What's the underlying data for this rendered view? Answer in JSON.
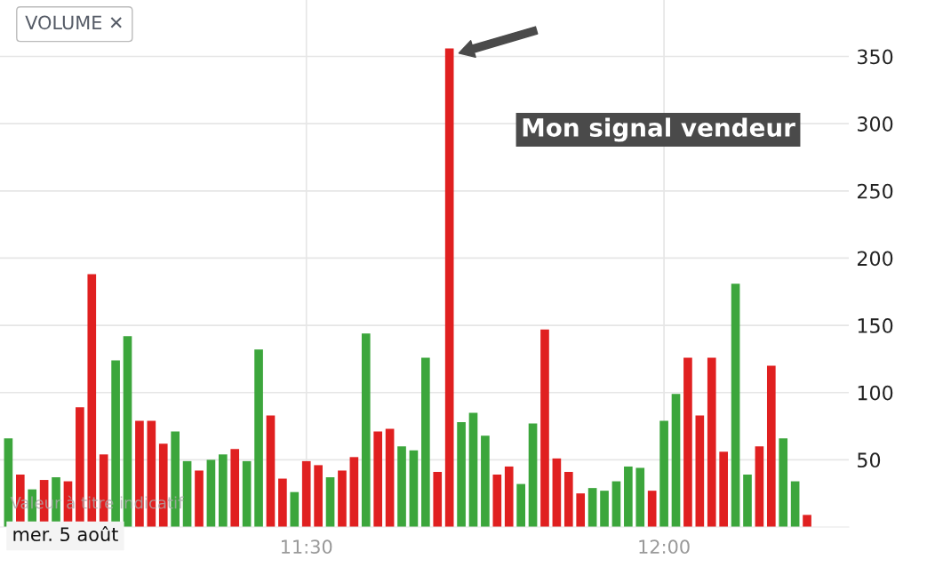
{
  "chart_data": {
    "type": "bar",
    "categories": [
      null,
      null,
      null,
      null,
      null,
      null,
      null,
      null,
      null,
      null,
      null,
      null,
      null,
      null,
      null,
      null,
      null,
      null,
      null,
      null,
      null,
      null,
      null,
      null,
      null,
      "11:30",
      null,
      null,
      null,
      null,
      null,
      null,
      null,
      null,
      null,
      null,
      null,
      null,
      null,
      null,
      null,
      null,
      null,
      null,
      null,
      null,
      null,
      null,
      null,
      null,
      null,
      null,
      null,
      null,
      null,
      "12:00",
      null,
      null,
      null,
      null,
      null,
      null,
      null,
      null,
      null,
      null,
      null,
      null
    ],
    "values": [
      66,
      39,
      28,
      35,
      37,
      34,
      89,
      188,
      54,
      124,
      142,
      79,
      79,
      62,
      71,
      49,
      42,
      50,
      54,
      58,
      49,
      132,
      83,
      36,
      26,
      49,
      46,
      37,
      42,
      52,
      144,
      71,
      73,
      60,
      57,
      126,
      41,
      356,
      78,
      85,
      68,
      39,
      45,
      32,
      77,
      147,
      51,
      41,
      25,
      29,
      27,
      34,
      45,
      44,
      27,
      79,
      99,
      126,
      83,
      126,
      56,
      181,
      39,
      60,
      120,
      66,
      34,
      9
    ],
    "colors": [
      "#3ca63c",
      "#e02020",
      "#3ca63c",
      "#e02020",
      "#3ca63c",
      "#e02020",
      "#e02020",
      "#e02020",
      "#e02020",
      "#3ca63c",
      "#3ca63c",
      "#e02020",
      "#e02020",
      "#e02020",
      "#3ca63c",
      "#3ca63c",
      "#e02020",
      "#3ca63c",
      "#3ca63c",
      "#e02020",
      "#3ca63c",
      "#3ca63c",
      "#e02020",
      "#e02020",
      "#3ca63c",
      "#e02020",
      "#e02020",
      "#3ca63c",
      "#e02020",
      "#e02020",
      "#3ca63c",
      "#e02020",
      "#e02020",
      "#3ca63c",
      "#3ca63c",
      "#3ca63c",
      "#e02020",
      "#e02020",
      "#3ca63c",
      "#3ca63c",
      "#3ca63c",
      "#e02020",
      "#e02020",
      "#3ca63c",
      "#3ca63c",
      "#e02020",
      "#e02020",
      "#e02020",
      "#e02020",
      "#3ca63c",
      "#3ca63c",
      "#3ca63c",
      "#3ca63c",
      "#3ca63c",
      "#e02020",
      "#3ca63c",
      "#3ca63c",
      "#e02020",
      "#e02020",
      "#e02020",
      "#e02020",
      "#3ca63c",
      "#3ca63c",
      "#e02020",
      "#e02020",
      "#3ca63c",
      "#3ca63c",
      "#e02020"
    ],
    "ylim": [
      0,
      392
    ],
    "yticks": [
      50,
      100,
      150,
      200,
      250,
      300,
      350
    ],
    "grid": true,
    "annotations": [
      "VOLUME ✕",
      "Mon signal vendeur",
      "Valeur à titre indicatif",
      "mer. 5 août"
    ]
  }
}
